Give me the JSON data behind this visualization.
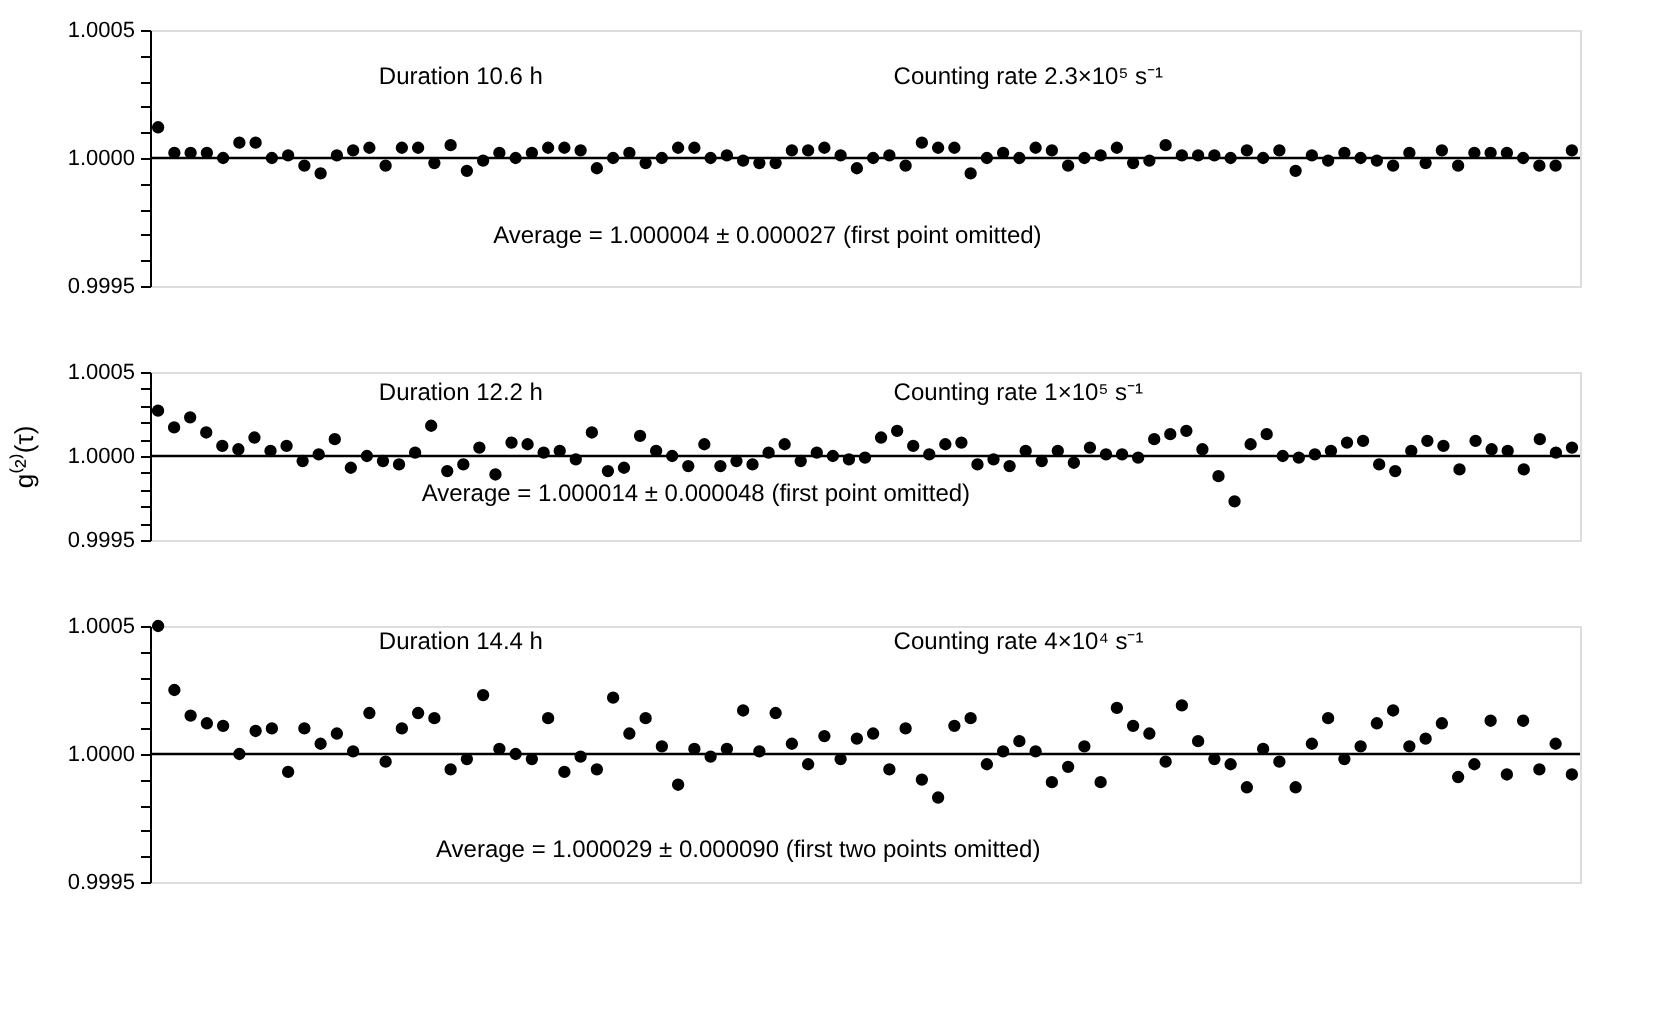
{
  "chart_data": [
    {
      "type": "scatter",
      "marker": "circle",
      "grid": false,
      "tick_labels": "y",
      "categories": [
        null,
        null,
        null,
        null,
        null,
        null,
        null,
        null,
        null,
        null,
        null,
        null,
        null,
        null,
        null,
        null,
        null,
        null,
        null,
        null,
        null,
        null,
        null,
        null,
        null,
        null,
        null,
        null,
        null,
        null,
        null,
        null,
        null,
        null,
        null,
        null,
        null,
        null,
        null,
        null,
        null,
        null,
        null,
        null,
        null,
        null,
        null,
        null,
        null,
        null,
        null,
        null,
        null,
        null,
        null,
        null,
        null,
        null,
        null,
        null,
        null,
        null,
        null,
        null,
        null,
        null,
        null,
        null,
        null,
        null,
        null,
        null,
        null,
        null,
        null,
        null,
        null,
        null,
        null,
        null,
        null,
        null,
        null,
        null,
        null,
        null,
        null,
        null
      ],
      "series": [
        {
          "color": "#000000",
          "values": [
            1.00012,
            1.00002,
            1.00002,
            1.00002,
            1.0,
            1.00006,
            1.00006,
            1.0,
            1.00001,
            0.99997,
            0.99994,
            1.00001,
            1.00003,
            1.00004,
            0.99997,
            1.00004,
            1.00004,
            0.99998,
            1.00005,
            0.99995,
            0.99999,
            1.00002,
            1.0,
            1.00002,
            1.00004,
            1.00004,
            1.00003,
            0.99996,
            1.0,
            1.00002,
            0.99998,
            1.0,
            1.00004,
            1.00004,
            1.0,
            1.00001,
            0.99999,
            0.99998,
            0.99998,
            1.00003,
            1.00003,
            1.00004,
            1.00001,
            0.99996,
            1.0,
            1.00001,
            0.99997,
            1.00006,
            1.00004,
            1.00004,
            0.99994,
            1.0,
            1.00002,
            1.0,
            1.00004,
            1.00003,
            0.99997,
            1.0,
            1.00001,
            1.00004,
            0.99998,
            0.99999,
            1.00005,
            1.00001,
            1.00001,
            1.00001,
            1.0,
            1.00003,
            1.0,
            1.00003,
            0.99995,
            1.00001,
            0.99999,
            1.00002,
            1.0,
            0.99999,
            0.99997,
            1.00002,
            0.99998,
            1.00003,
            0.99997,
            1.00002,
            1.00002,
            1.00002,
            1.0,
            0.99997,
            0.99997,
            1.00003
          ]
        }
      ],
      "ylim": [
        0.9995,
        1.0005
      ],
      "yticks": [
        {
          "value": 0.9995,
          "label": "0.9995"
        },
        {
          "value": 0.9996,
          "label": null
        },
        {
          "value": 0.9997,
          "label": null
        },
        {
          "value": 0.9998,
          "label": null
        },
        {
          "value": 0.9999,
          "label": null
        },
        {
          "value": 1.0,
          "label": "1.0000"
        },
        {
          "value": 1.0001,
          "label": null
        },
        {
          "value": 1.0002,
          "label": null
        },
        {
          "value": 1.0003,
          "label": null
        },
        {
          "value": 1.0004,
          "label": null
        },
        {
          "value": 1.0005,
          "label": "1.0005"
        }
      ],
      "ref_lines": [
        {
          "axis": "y",
          "value": 1.0,
          "color": "#000000"
        }
      ],
      "annotations": [
        "Duration 10.6 h",
        "Counting rate 2.3×10⁵ s⁻¹",
        "Average = 1.000004 ± 0.000027   (first point omitted)"
      ]
    },
    {
      "type": "scatter",
      "marker": "circle",
      "grid": false,
      "tick_labels": "y",
      "ylabel": "g⁽²⁾(τ)",
      "categories": [
        null,
        null,
        null,
        null,
        null,
        null,
        null,
        null,
        null,
        null,
        null,
        null,
        null,
        null,
        null,
        null,
        null,
        null,
        null,
        null,
        null,
        null,
        null,
        null,
        null,
        null,
        null,
        null,
        null,
        null,
        null,
        null,
        null,
        null,
        null,
        null,
        null,
        null,
        null,
        null,
        null,
        null,
        null,
        null,
        null,
        null,
        null,
        null,
        null,
        null,
        null,
        null,
        null,
        null,
        null,
        null,
        null,
        null,
        null,
        null,
        null,
        null,
        null,
        null,
        null,
        null,
        null,
        null,
        null,
        null,
        null,
        null,
        null,
        null,
        null,
        null,
        null,
        null,
        null,
        null,
        null,
        null,
        null,
        null,
        null,
        null,
        null,
        null,
        null
      ],
      "series": [
        {
          "color": "#000000",
          "values": [
            1.00027,
            1.00017,
            1.00023,
            1.00014,
            1.00006,
            1.00004,
            1.00011,
            1.00003,
            1.00006,
            0.99997,
            1.00001,
            1.0001,
            0.99993,
            1.0,
            0.99997,
            0.99995,
            1.00002,
            1.00018,
            0.99991,
            0.99995,
            1.00005,
            0.99989,
            1.00008,
            1.00007,
            1.00002,
            1.00003,
            0.99998,
            1.00014,
            0.99991,
            0.99993,
            1.00012,
            1.00003,
            1.0,
            0.99994,
            1.00007,
            0.99994,
            0.99997,
            0.99995,
            1.00002,
            1.00007,
            0.99997,
            1.00002,
            1.0,
            0.99998,
            0.99999,
            1.00011,
            1.00015,
            1.00006,
            1.00001,
            1.00007,
            1.00008,
            0.99995,
            0.99998,
            0.99994,
            1.00003,
            0.99997,
            1.00003,
            0.99996,
            1.00005,
            1.00001,
            1.00001,
            0.99999,
            1.0001,
            1.00013,
            1.00015,
            1.00004,
            0.99988,
            0.99973,
            1.00007,
            1.00013,
            1.0,
            0.99999,
            1.00001,
            1.00003,
            1.00008,
            1.00009,
            0.99995,
            0.99991,
            1.00003,
            1.00009,
            1.00006,
            0.99992,
            1.00009,
            1.00004,
            1.00003,
            0.99992,
            1.0001,
            1.00002,
            1.00005
          ]
        }
      ],
      "ylim": [
        0.9995,
        1.0005
      ],
      "yticks": [
        {
          "value": 0.9995,
          "label": "0.9995"
        },
        {
          "value": 0.9996,
          "label": null
        },
        {
          "value": 0.9997,
          "label": null
        },
        {
          "value": 0.9998,
          "label": null
        },
        {
          "value": 0.9999,
          "label": null
        },
        {
          "value": 1.0,
          "label": "1.0000"
        },
        {
          "value": 1.0001,
          "label": null
        },
        {
          "value": 1.0002,
          "label": null
        },
        {
          "value": 1.0003,
          "label": null
        },
        {
          "value": 1.0004,
          "label": null
        },
        {
          "value": 1.0005,
          "label": "1.0005"
        }
      ],
      "ref_lines": [
        {
          "axis": "y",
          "value": 1.0,
          "color": "#000000"
        }
      ],
      "annotations": [
        "Duration 12.2 h",
        "Counting rate 1×10⁵ s⁻¹",
        "Average = 1.000014 ± 0.000048   (first point omitted)"
      ]
    },
    {
      "type": "scatter",
      "marker": "circle",
      "grid": false,
      "tick_labels": "y",
      "categories": [
        null,
        null,
        null,
        null,
        null,
        null,
        null,
        null,
        null,
        null,
        null,
        null,
        null,
        null,
        null,
        null,
        null,
        null,
        null,
        null,
        null,
        null,
        null,
        null,
        null,
        null,
        null,
        null,
        null,
        null,
        null,
        null,
        null,
        null,
        null,
        null,
        null,
        null,
        null,
        null,
        null,
        null,
        null,
        null,
        null,
        null,
        null,
        null,
        null,
        null,
        null,
        null,
        null,
        null,
        null,
        null,
        null,
        null,
        null,
        null,
        null,
        null,
        null,
        null,
        null,
        null,
        null,
        null,
        null,
        null,
        null,
        null,
        null,
        null,
        null,
        null,
        null,
        null,
        null,
        null,
        null,
        null,
        null,
        null,
        null,
        null,
        null,
        null
      ],
      "series": [
        {
          "color": "#000000",
          "values": [
            1.0005,
            1.00025,
            1.00015,
            1.00012,
            1.00011,
            1.0,
            1.00009,
            1.0001,
            0.99993,
            1.0001,
            1.00004,
            1.00008,
            1.00001,
            1.00016,
            0.99997,
            1.0001,
            1.00016,
            1.00014,
            0.99994,
            0.99998,
            1.00023,
            1.00002,
            1.0,
            0.99998,
            1.00014,
            0.99993,
            0.99999,
            0.99994,
            1.00022,
            1.00008,
            1.00014,
            1.00003,
            0.99988,
            1.00002,
            0.99999,
            1.00002,
            1.00017,
            1.00001,
            1.00016,
            1.00004,
            0.99996,
            1.00007,
            0.99998,
            1.00006,
            1.00008,
            0.99994,
            1.0001,
            0.9999,
            0.99983,
            1.00011,
            1.00014,
            0.99996,
            1.00001,
            1.00005,
            1.00001,
            0.99989,
            0.99995,
            1.00003,
            0.99989,
            1.00018,
            1.00011,
            1.00008,
            0.99997,
            1.00019,
            1.00005,
            0.99998,
            0.99996,
            0.99987,
            1.00002,
            0.99997,
            0.99987,
            1.00004,
            1.00014,
            0.99998,
            1.00003,
            1.00012,
            1.00017,
            1.00003,
            1.00006,
            1.00012,
            0.99991,
            0.99996,
            1.00013,
            0.99992,
            1.00013,
            0.99994,
            1.00004,
            0.99992
          ]
        }
      ],
      "ylim": [
        0.9995,
        1.0005
      ],
      "yticks": [
        {
          "value": 0.9995,
          "label": "0.9995"
        },
        {
          "value": 0.9996,
          "label": null
        },
        {
          "value": 0.9997,
          "label": null
        },
        {
          "value": 0.9998,
          "label": null
        },
        {
          "value": 0.9999,
          "label": null
        },
        {
          "value": 1.0,
          "label": "1.0000"
        },
        {
          "value": 1.0001,
          "label": null
        },
        {
          "value": 1.0002,
          "label": null
        },
        {
          "value": 1.0003,
          "label": null
        },
        {
          "value": 1.0004,
          "label": null
        },
        {
          "value": 1.0005,
          "label": "1.0005"
        }
      ],
      "ref_lines": [
        {
          "axis": "y",
          "value": 1.0,
          "color": "#000000"
        }
      ],
      "annotations": [
        "Duration 14.4 h",
        "Counting rate 4×10⁴ s⁻¹",
        "Average = 1.000029 ± 0.000090   (first two points omitted)"
      ]
    }
  ]
}
